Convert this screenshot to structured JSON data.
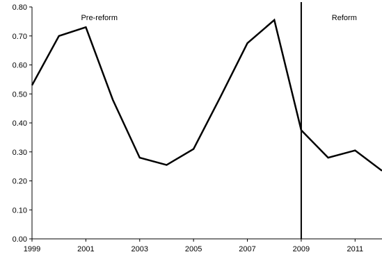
{
  "chart_data": {
    "type": "line",
    "title": "",
    "xlabel": "",
    "ylabel": "",
    "x": [
      1999,
      2000,
      2001,
      2002,
      2003,
      2004,
      2005,
      2006,
      2007,
      2008,
      2009,
      2010,
      2011,
      2012
    ],
    "series": [
      {
        "values": [
          0.53,
          0.7,
          0.73,
          0.48,
          0.28,
          0.255,
          0.31,
          0.49,
          0.675,
          0.755,
          0.375,
          0.28,
          0.305,
          0.235
        ]
      }
    ],
    "xlim": [
      1999,
      2012
    ],
    "ylim": [
      0.0,
      0.8
    ],
    "x_ticks": [
      1999,
      2001,
      2003,
      2005,
      2007,
      2009,
      2011
    ],
    "x_tick_labels": [
      "1999",
      "2001",
      "2003",
      "2005",
      "2007",
      "2009",
      "2011"
    ],
    "y_ticks": [
      0.0,
      0.1,
      0.2,
      0.3,
      0.4,
      0.5,
      0.6,
      0.7,
      0.8
    ],
    "y_tick_labels": [
      "0.00",
      "0.10",
      "0.20",
      "0.30",
      "0.40",
      "0.50",
      "0.60",
      "0.70",
      "0.80"
    ],
    "grid": false,
    "legend": "none",
    "reference_line": {
      "x": 2009
    },
    "annotations": [
      {
        "text": "Pre-reform",
        "x": 2001.5,
        "y": 0.755
      },
      {
        "text": "Reform",
        "x": 2010.6,
        "y": 0.755
      }
    ],
    "colors": {
      "line": "#000000",
      "axis": "#000000",
      "text": "#000000"
    }
  }
}
